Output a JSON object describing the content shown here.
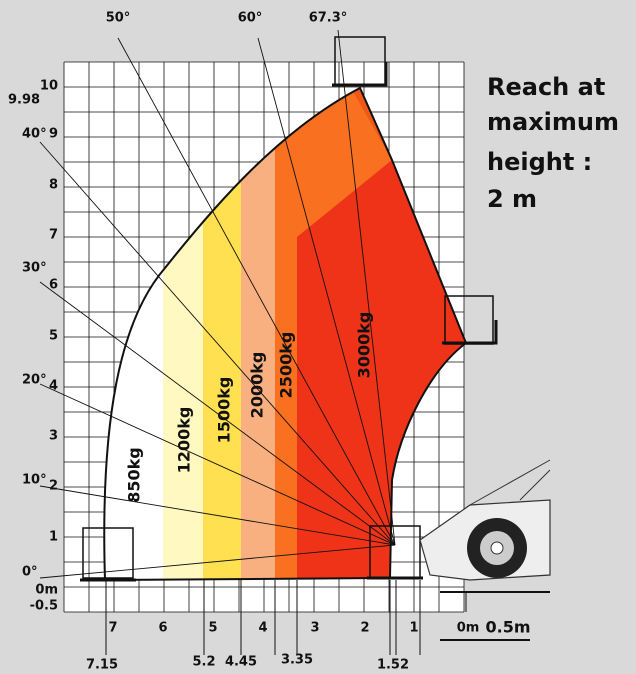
{
  "header": {
    "lines": [
      "Reach at",
      "maximum",
      "height :",
      "2 m"
    ]
  },
  "y_labels": [
    "10",
    "9",
    "8",
    "7",
    "6",
    "5",
    "4",
    "3",
    "2",
    "1",
    "0m",
    "-0.5",
    "9.98"
  ],
  "x_labels": [
    "7",
    "6",
    "5",
    "4",
    "3",
    "2",
    "1",
    "0m",
    "0.5m"
  ],
  "angle_labels": [
    "50°",
    "60°",
    "67.3°",
    "40°",
    "30°",
    "20°",
    "10°",
    "0°"
  ],
  "load_labels": [
    "850kg",
    "1200kg",
    "1500kg",
    "2000kg",
    "2500kg",
    "3000kg"
  ],
  "reach_labels": [
    "7.15",
    "5.2",
    "4.45",
    "3.35",
    "1.52"
  ]
}
